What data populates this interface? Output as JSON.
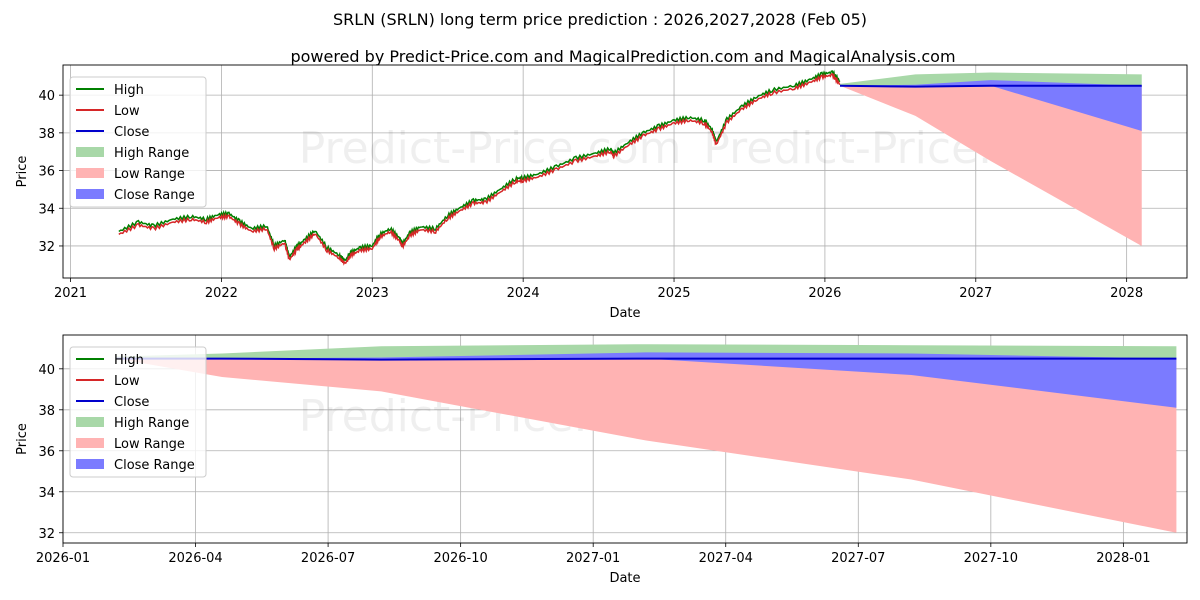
{
  "header": {
    "title": "SRLN (SRLN) long term price prediction : 2026,2027,2028 (Feb 05)",
    "subtitle": "powered by Predict-Price.com and MagicalPrediction.com and MagicalAnalysis.com"
  },
  "watermark": "Predict-Price.com",
  "colors": {
    "high": "#008000",
    "low": "#d62728",
    "close": "#0000cc",
    "high_range": "#a8d8a8",
    "low_range": "#ffb3b3",
    "close_range": "#7b7bff"
  },
  "chart_data": [
    {
      "type": "line",
      "title": "SRLN history and forecast",
      "xlabel": "Date",
      "ylabel": "Price",
      "xlim": [
        2020.95,
        2028.4
      ],
      "ylim": [
        30.3,
        41.6
      ],
      "x_ticks": [
        2021,
        2022,
        2023,
        2024,
        2025,
        2026,
        2027,
        2028
      ],
      "x_tick_labels": [
        "2021",
        "2022",
        "2023",
        "2024",
        "2025",
        "2026",
        "2027",
        "2028"
      ],
      "y_ticks": [
        32,
        34,
        36,
        38,
        40
      ],
      "y_tick_labels": [
        "32",
        "34",
        "36",
        "38",
        "40"
      ],
      "legend": [
        {
          "label": "High",
          "kind": "line",
          "color": "#008000"
        },
        {
          "label": "Low",
          "kind": "line",
          "color": "#d62728"
        },
        {
          "label": "Close",
          "kind": "line",
          "color": "#0000cc"
        },
        {
          "label": "High Range",
          "kind": "patch",
          "color": "#a8d8a8"
        },
        {
          "label": "Low Range",
          "kind": "patch",
          "color": "#ffb3b3"
        },
        {
          "label": "Close Range",
          "kind": "patch",
          "color": "#7b7bff"
        }
      ],
      "legend_position": "top-left",
      "history": {
        "x": [
          2021.32,
          2021.45,
          2021.55,
          2021.68,
          2021.8,
          2021.9,
          2021.98,
          2022.05,
          2022.12,
          2022.2,
          2022.3,
          2022.35,
          2022.42,
          2022.45,
          2022.5,
          2022.55,
          2022.62,
          2022.7,
          2022.78,
          2022.82,
          2022.86,
          2022.92,
          2023.0,
          2023.05,
          2023.12,
          2023.18,
          2023.2,
          2023.25,
          2023.32,
          2023.42,
          2023.5,
          2023.58,
          2023.67,
          2023.75,
          2023.85,
          2023.95,
          2024.0,
          2024.1,
          2024.22,
          2024.35,
          2024.48,
          2024.58,
          2024.6,
          2024.7,
          2024.8,
          2024.9,
          2025.0,
          2025.1,
          2025.2,
          2025.25,
          2025.28,
          2025.35,
          2025.45,
          2025.55,
          2025.65,
          2025.8,
          2025.9,
          2025.98,
          2026.05,
          2026.1
        ],
        "close": [
          32.65,
          33.15,
          32.95,
          33.3,
          33.45,
          33.3,
          33.55,
          33.6,
          33.2,
          32.8,
          32.95,
          31.9,
          32.2,
          31.3,
          31.85,
          32.2,
          32.7,
          31.8,
          31.4,
          31.1,
          31.55,
          31.8,
          31.9,
          32.5,
          32.8,
          32.3,
          32.0,
          32.6,
          32.9,
          32.8,
          33.5,
          33.9,
          34.3,
          34.35,
          34.9,
          35.45,
          35.5,
          35.7,
          36.1,
          36.55,
          36.8,
          37.05,
          36.8,
          37.4,
          37.9,
          38.25,
          38.55,
          38.7,
          38.55,
          38.1,
          37.4,
          38.6,
          39.3,
          39.8,
          40.15,
          40.4,
          40.7,
          41.0,
          41.1,
          40.6
        ],
        "high_offset": 0.12,
        "low_offset": 0.12
      },
      "forecast": {
        "x": [
          2026.1,
          2026.6,
          2027.1,
          2028.1
        ],
        "close": [
          40.5,
          40.45,
          40.5,
          40.5
        ],
        "high_range": {
          "upper": [
            40.6,
            41.1,
            41.2,
            41.1
          ],
          "lower": [
            40.5,
            40.5,
            40.5,
            40.5
          ]
        },
        "low_range": {
          "upper": [
            40.5,
            40.5,
            40.5,
            40.5
          ],
          "lower": [
            40.5,
            38.9,
            36.5,
            32.0
          ]
        },
        "close_range": {
          "upper": [
            40.5,
            40.55,
            40.8,
            40.5
          ],
          "lower": [
            40.5,
            40.5,
            40.5,
            38.1
          ]
        }
      }
    },
    {
      "type": "line",
      "title": "SRLN forecast detail",
      "xlabel": "Date",
      "ylabel": "Price",
      "xlim": [
        2026.0,
        2028.12
      ],
      "ylim": [
        31.5,
        41.65
      ],
      "x_ticks": [
        2026.0,
        2026.25,
        2026.5,
        2026.75,
        2027.0,
        2027.25,
        2027.5,
        2027.75,
        2028.0
      ],
      "x_tick_labels": [
        "2026-01",
        "2026-04",
        "2026-07",
        "2026-10",
        "2027-01",
        "2027-04",
        "2027-07",
        "2027-10",
        "2028-01"
      ],
      "y_ticks": [
        32,
        34,
        36,
        38,
        40
      ],
      "y_tick_labels": [
        "32",
        "34",
        "36",
        "38",
        "40"
      ],
      "legend": [
        {
          "label": "High",
          "kind": "line",
          "color": "#008000"
        },
        {
          "label": "Low",
          "kind": "line",
          "color": "#d62728"
        },
        {
          "label": "Close",
          "kind": "line",
          "color": "#0000cc"
        },
        {
          "label": "High Range",
          "kind": "patch",
          "color": "#a8d8a8"
        },
        {
          "label": "Low Range",
          "kind": "patch",
          "color": "#ffb3b3"
        },
        {
          "label": "Close Range",
          "kind": "patch",
          "color": "#7b7bff"
        }
      ],
      "legend_position": "top-left",
      "forecast": {
        "x": [
          2026.1,
          2026.3,
          2026.6,
          2027.1,
          2027.6,
          2028.1
        ],
        "close": [
          40.5,
          40.5,
          40.45,
          40.5,
          40.5,
          40.5
        ],
        "high_range": {
          "upper": [
            40.6,
            40.75,
            41.1,
            41.2,
            41.15,
            41.1
          ],
          "lower": [
            40.5,
            40.5,
            40.5,
            40.5,
            40.5,
            40.5
          ]
        },
        "low_range": {
          "upper": [
            40.5,
            40.5,
            40.5,
            40.5,
            40.5,
            40.5
          ],
          "lower": [
            40.5,
            39.6,
            38.9,
            36.5,
            34.6,
            32.0
          ]
        },
        "close_range": {
          "upper": [
            40.5,
            40.5,
            40.55,
            40.8,
            40.75,
            40.5
          ],
          "lower": [
            40.5,
            40.5,
            40.5,
            40.5,
            39.7,
            38.1
          ]
        }
      }
    }
  ]
}
